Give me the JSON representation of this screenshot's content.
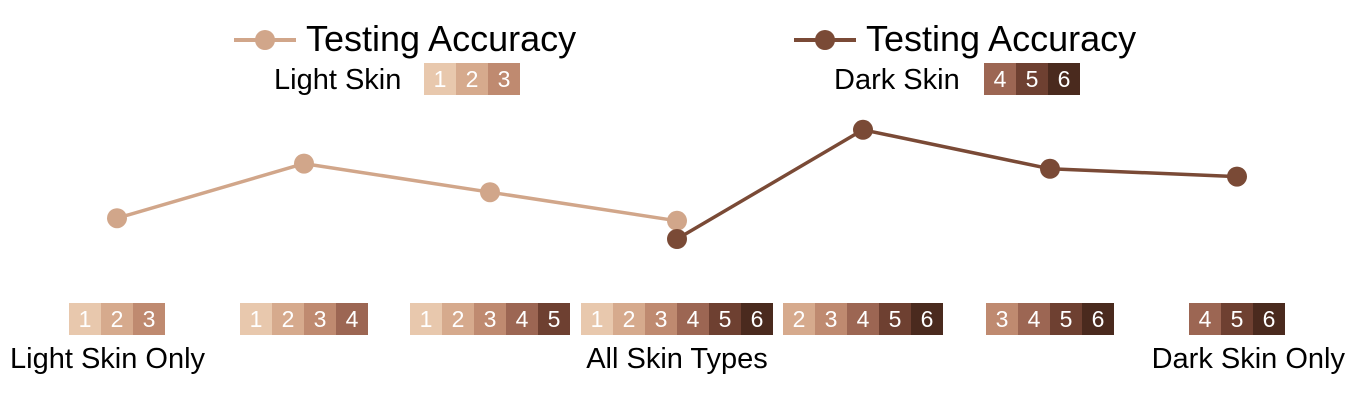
{
  "chart_data": {
    "type": "line",
    "title": "",
    "xlabel": "",
    "ylabel": "",
    "grid": false,
    "legend_position": "top",
    "skin_colors": {
      "1": "#e8c8ad",
      "2": "#d6aa8d",
      "3": "#bf8a70",
      "4": "#9c6653",
      "5": "#6e4031",
      "6": "#4a2a1e"
    },
    "categories": [
      {
        "types": [
          "1",
          "2",
          "3"
        ],
        "label": "Light Skin Only"
      },
      {
        "types": [
          "1",
          "2",
          "3",
          "4"
        ],
        "label": ""
      },
      {
        "types": [
          "1",
          "2",
          "3",
          "4",
          "5"
        ],
        "label": ""
      },
      {
        "types": [
          "1",
          "2",
          "3",
          "4",
          "5",
          "6"
        ],
        "label": "All Skin Types"
      },
      {
        "types": [
          "2",
          "3",
          "4",
          "5",
          "6"
        ],
        "label": ""
      },
      {
        "types": [
          "3",
          "4",
          "5",
          "6"
        ],
        "label": ""
      },
      {
        "types": [
          "4",
          "5",
          "6"
        ],
        "label": "Dark Skin Only"
      }
    ],
    "series": [
      {
        "name": "Testing Accuracy",
        "group_label": "Light Skin",
        "group_types": [
          "1",
          "2",
          "3"
        ],
        "color": "#d1a68a",
        "x": [
          0,
          1,
          2,
          3
        ],
        "values": [
          0.43,
          0.64,
          0.53,
          0.42
        ]
      },
      {
        "name": "Testing Accuracy",
        "group_label": "Dark Skin",
        "group_types": [
          "4",
          "5",
          "6"
        ],
        "color": "#7a4a36",
        "x": [
          3,
          4,
          5,
          6
        ],
        "values": [
          0.35,
          0.77,
          0.62,
          0.59
        ]
      }
    ]
  }
}
